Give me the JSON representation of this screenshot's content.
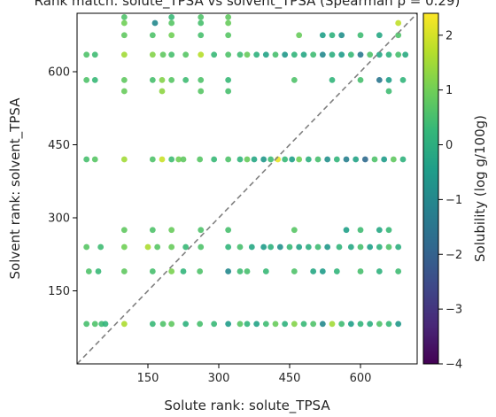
{
  "chart_data": {
    "type": "scatter",
    "title": "Rank match: solute_TPSA vs solvent_TPSA (Spearman ρ = 0.29)",
    "xlabel": "Solute rank: solute_TPSA",
    "ylabel": "Solvent rank: solvent_TPSA",
    "xlim": [
      0,
      720
    ],
    "ylim": [
      0,
      720
    ],
    "xticks": [
      150,
      300,
      450,
      600
    ],
    "yticks": [
      150,
      300,
      450,
      600
    ],
    "grid": false,
    "legend": "none",
    "reference_line": {
      "from": [
        0,
        0
      ],
      "to": [
        720,
        720
      ],
      "style": "dashed",
      "color": "#808080"
    },
    "colorbar": {
      "label": "Solubility (log g/100g)",
      "range": [
        -4,
        2.4
      ],
      "ticks": [
        2,
        1,
        0,
        -1,
        -2,
        -3,
        -4
      ],
      "colormap": "viridis"
    },
    "colormap_colors": [
      "#440154",
      "#482878",
      "#3e4989",
      "#31688e",
      "#26828e",
      "#1f9e89",
      "#35b779",
      "#6ece58",
      "#b5de2b",
      "#fde725"
    ],
    "points": [
      {
        "x": 20,
        "y": 82,
        "c": 0.5
      },
      {
        "x": 38,
        "y": 82,
        "c": 0.6
      },
      {
        "x": 52,
        "y": 82,
        "c": 0.4
      },
      {
        "x": 60,
        "y": 82,
        "c": 0.2
      },
      {
        "x": 100,
        "y": 82,
        "c": 1.6
      },
      {
        "x": 160,
        "y": 82,
        "c": 0.3
      },
      {
        "x": 182,
        "y": 82,
        "c": 0.6
      },
      {
        "x": 200,
        "y": 82,
        "c": 0.8
      },
      {
        "x": 230,
        "y": 82,
        "c": 0.1
      },
      {
        "x": 260,
        "y": 82,
        "c": 0.5
      },
      {
        "x": 290,
        "y": 82,
        "c": 0.3
      },
      {
        "x": 320,
        "y": 82,
        "c": -0.5
      },
      {
        "x": 345,
        "y": 82,
        "c": 0.7
      },
      {
        "x": 360,
        "y": 82,
        "c": 0.2
      },
      {
        "x": 380,
        "y": 82,
        "c": -0.3
      },
      {
        "x": 400,
        "y": 82,
        "c": 0.4
      },
      {
        "x": 420,
        "y": 82,
        "c": 0.9
      },
      {
        "x": 440,
        "y": 82,
        "c": 0.1
      },
      {
        "x": 460,
        "y": 82,
        "c": 1.2
      },
      {
        "x": 480,
        "y": 82,
        "c": 0.3
      },
      {
        "x": 500,
        "y": 82,
        "c": 0.6
      },
      {
        "x": 520,
        "y": 82,
        "c": -1.0
      },
      {
        "x": 540,
        "y": 82,
        "c": 1.5
      },
      {
        "x": 560,
        "y": 82,
        "c": 0.4
      },
      {
        "x": 580,
        "y": 82,
        "c": -0.4
      },
      {
        "x": 600,
        "y": 82,
        "c": 0.2
      },
      {
        "x": 620,
        "y": 82,
        "c": 0.0
      },
      {
        "x": 640,
        "y": 82,
        "c": 0.6
      },
      {
        "x": 660,
        "y": 82,
        "c": 0.3
      },
      {
        "x": 680,
        "y": 82,
        "c": -0.6
      },
      {
        "x": 25,
        "y": 190,
        "c": 0.6
      },
      {
        "x": 45,
        "y": 190,
        "c": 0.3
      },
      {
        "x": 100,
        "y": 190,
        "c": 0.8
      },
      {
        "x": 160,
        "y": 190,
        "c": 0.5
      },
      {
        "x": 200,
        "y": 190,
        "c": 1.1
      },
      {
        "x": 225,
        "y": 190,
        "c": 0.2
      },
      {
        "x": 260,
        "y": 190,
        "c": 0.6
      },
      {
        "x": 320,
        "y": 190,
        "c": -1.0
      },
      {
        "x": 345,
        "y": 190,
        "c": 0.4
      },
      {
        "x": 360,
        "y": 190,
        "c": 0.5
      },
      {
        "x": 400,
        "y": 190,
        "c": 0.3
      },
      {
        "x": 460,
        "y": 190,
        "c": 0.6
      },
      {
        "x": 500,
        "y": 190,
        "c": -0.2
      },
      {
        "x": 520,
        "y": 190,
        "c": -0.5
      },
      {
        "x": 550,
        "y": 190,
        "c": 0.2
      },
      {
        "x": 600,
        "y": 190,
        "c": 0.5
      },
      {
        "x": 640,
        "y": 190,
        "c": 0.1
      },
      {
        "x": 680,
        "y": 190,
        "c": 0.4
      },
      {
        "x": 20,
        "y": 240,
        "c": 0.7
      },
      {
        "x": 50,
        "y": 240,
        "c": 0.4
      },
      {
        "x": 100,
        "y": 240,
        "c": 1.0
      },
      {
        "x": 150,
        "y": 240,
        "c": 1.6
      },
      {
        "x": 170,
        "y": 240,
        "c": 0.7
      },
      {
        "x": 200,
        "y": 240,
        "c": 0.9
      },
      {
        "x": 230,
        "y": 240,
        "c": 0.3
      },
      {
        "x": 262,
        "y": 240,
        "c": 0.6
      },
      {
        "x": 320,
        "y": 240,
        "c": 0.2
      },
      {
        "x": 345,
        "y": 240,
        "c": 0.5
      },
      {
        "x": 370,
        "y": 240,
        "c": -0.2
      },
      {
        "x": 395,
        "y": 240,
        "c": -0.5
      },
      {
        "x": 410,
        "y": 240,
        "c": 0.1
      },
      {
        "x": 430,
        "y": 240,
        "c": -0.8
      },
      {
        "x": 450,
        "y": 240,
        "c": 0.3
      },
      {
        "x": 470,
        "y": 240,
        "c": -0.3
      },
      {
        "x": 490,
        "y": 240,
        "c": 0.0
      },
      {
        "x": 510,
        "y": 240,
        "c": 0.4
      },
      {
        "x": 530,
        "y": 240,
        "c": -0.6
      },
      {
        "x": 555,
        "y": 240,
        "c": 0.2
      },
      {
        "x": 580,
        "y": 240,
        "c": -0.2
      },
      {
        "x": 600,
        "y": 240,
        "c": 0.5
      },
      {
        "x": 620,
        "y": 240,
        "c": -0.4
      },
      {
        "x": 640,
        "y": 240,
        "c": 0.1
      },
      {
        "x": 660,
        "y": 240,
        "c": 0.6
      },
      {
        "x": 680,
        "y": 240,
        "c": 0.0
      },
      {
        "x": 100,
        "y": 275,
        "c": 0.8
      },
      {
        "x": 160,
        "y": 275,
        "c": 0.6
      },
      {
        "x": 200,
        "y": 275,
        "c": 0.9
      },
      {
        "x": 262,
        "y": 275,
        "c": 0.6
      },
      {
        "x": 320,
        "y": 275,
        "c": 0.5
      },
      {
        "x": 460,
        "y": 275,
        "c": 0.7
      },
      {
        "x": 570,
        "y": 275,
        "c": -0.4
      },
      {
        "x": 600,
        "y": 275,
        "c": 0.4
      },
      {
        "x": 640,
        "y": 275,
        "c": -0.2
      },
      {
        "x": 660,
        "y": 275,
        "c": 0.3
      },
      {
        "x": 20,
        "y": 420,
        "c": 0.5
      },
      {
        "x": 38,
        "y": 420,
        "c": 0.7
      },
      {
        "x": 100,
        "y": 420,
        "c": 1.5
      },
      {
        "x": 160,
        "y": 420,
        "c": 0.6
      },
      {
        "x": 180,
        "y": 420,
        "c": 1.9
      },
      {
        "x": 200,
        "y": 420,
        "c": 0.4
      },
      {
        "x": 215,
        "y": 420,
        "c": 1.0
      },
      {
        "x": 225,
        "y": 420,
        "c": 0.8
      },
      {
        "x": 260,
        "y": 420,
        "c": 0.7
      },
      {
        "x": 290,
        "y": 420,
        "c": 0.3
      },
      {
        "x": 320,
        "y": 420,
        "c": 0.6
      },
      {
        "x": 345,
        "y": 420,
        "c": 0.2
      },
      {
        "x": 360,
        "y": 420,
        "c": 0.9
      },
      {
        "x": 375,
        "y": 420,
        "c": -0.2
      },
      {
        "x": 395,
        "y": 420,
        "c": -0.6
      },
      {
        "x": 410,
        "y": 420,
        "c": 0.4
      },
      {
        "x": 425,
        "y": 420,
        "c": 2.2
      },
      {
        "x": 440,
        "y": 420,
        "c": 0.3
      },
      {
        "x": 455,
        "y": 420,
        "c": -0.4
      },
      {
        "x": 470,
        "y": 420,
        "c": 1.0
      },
      {
        "x": 490,
        "y": 420,
        "c": 0.0
      },
      {
        "x": 510,
        "y": 420,
        "c": 0.5
      },
      {
        "x": 530,
        "y": 420,
        "c": -0.8
      },
      {
        "x": 550,
        "y": 420,
        "c": 0.2
      },
      {
        "x": 570,
        "y": 420,
        "c": -1.2
      },
      {
        "x": 590,
        "y": 420,
        "c": -0.3
      },
      {
        "x": 610,
        "y": 420,
        "c": -1.8
      },
      {
        "x": 630,
        "y": 420,
        "c": 0.6
      },
      {
        "x": 650,
        "y": 420,
        "c": -0.5
      },
      {
        "x": 670,
        "y": 420,
        "c": 0.8
      },
      {
        "x": 690,
        "y": 420,
        "c": 0.1
      },
      {
        "x": 20,
        "y": 583,
        "c": 0.6
      },
      {
        "x": 38,
        "y": 583,
        "c": 0.3
      },
      {
        "x": 100,
        "y": 583,
        "c": 0.8
      },
      {
        "x": 160,
        "y": 583,
        "c": 0.5
      },
      {
        "x": 180,
        "y": 583,
        "c": 1.2
      },
      {
        "x": 200,
        "y": 583,
        "c": 0.7
      },
      {
        "x": 230,
        "y": 583,
        "c": 0.4
      },
      {
        "x": 262,
        "y": 583,
        "c": 0.6
      },
      {
        "x": 320,
        "y": 583,
        "c": 0.3
      },
      {
        "x": 460,
        "y": 583,
        "c": 0.6
      },
      {
        "x": 540,
        "y": 583,
        "c": 0.2
      },
      {
        "x": 600,
        "y": 583,
        "c": 0.5
      },
      {
        "x": 640,
        "y": 583,
        "c": -1.5
      },
      {
        "x": 660,
        "y": 583,
        "c": -0.4
      },
      {
        "x": 690,
        "y": 583,
        "c": 0.2
      },
      {
        "x": 100,
        "y": 560,
        "c": 0.9
      },
      {
        "x": 180,
        "y": 560,
        "c": 1.3
      },
      {
        "x": 262,
        "y": 560,
        "c": 0.7
      },
      {
        "x": 320,
        "y": 560,
        "c": 0.5
      },
      {
        "x": 660,
        "y": 560,
        "c": 0.4
      },
      {
        "x": 20,
        "y": 635,
        "c": 0.6
      },
      {
        "x": 38,
        "y": 635,
        "c": 0.4
      },
      {
        "x": 100,
        "y": 635,
        "c": 1.5
      },
      {
        "x": 160,
        "y": 635,
        "c": 1.2
      },
      {
        "x": 182,
        "y": 635,
        "c": 0.8
      },
      {
        "x": 200,
        "y": 635,
        "c": 0.5
      },
      {
        "x": 230,
        "y": 635,
        "c": 0.7
      },
      {
        "x": 262,
        "y": 635,
        "c": 1.7
      },
      {
        "x": 290,
        "y": 635,
        "c": 0.3
      },
      {
        "x": 320,
        "y": 635,
        "c": 0.6
      },
      {
        "x": 345,
        "y": 635,
        "c": 0.4
      },
      {
        "x": 360,
        "y": 635,
        "c": 0.9
      },
      {
        "x": 380,
        "y": 635,
        "c": 0.1
      },
      {
        "x": 400,
        "y": 635,
        "c": -0.3
      },
      {
        "x": 420,
        "y": 635,
        "c": 0.5
      },
      {
        "x": 440,
        "y": 635,
        "c": -0.6
      },
      {
        "x": 460,
        "y": 635,
        "c": 0.2
      },
      {
        "x": 480,
        "y": 635,
        "c": -0.2
      },
      {
        "x": 500,
        "y": 635,
        "c": 0.4
      },
      {
        "x": 520,
        "y": 635,
        "c": -1.0
      },
      {
        "x": 540,
        "y": 635,
        "c": 0.0
      },
      {
        "x": 560,
        "y": 635,
        "c": -0.5
      },
      {
        "x": 580,
        "y": 635,
        "c": 0.3
      },
      {
        "x": 600,
        "y": 635,
        "c": -1.4
      },
      {
        "x": 620,
        "y": 635,
        "c": 0.6
      },
      {
        "x": 640,
        "y": 635,
        "c": -0.2
      },
      {
        "x": 660,
        "y": 635,
        "c": 0.1
      },
      {
        "x": 680,
        "y": 635,
        "c": 0.5
      },
      {
        "x": 695,
        "y": 635,
        "c": -0.1
      },
      {
        "x": 100,
        "y": 675,
        "c": 0.8
      },
      {
        "x": 160,
        "y": 675,
        "c": 0.6
      },
      {
        "x": 200,
        "y": 675,
        "c": 1.0
      },
      {
        "x": 262,
        "y": 675,
        "c": 0.5
      },
      {
        "x": 320,
        "y": 675,
        "c": 0.7
      },
      {
        "x": 470,
        "y": 675,
        "c": 0.9
      },
      {
        "x": 520,
        "y": 675,
        "c": -0.4
      },
      {
        "x": 540,
        "y": 675,
        "c": 0.1
      },
      {
        "x": 560,
        "y": 675,
        "c": -0.8
      },
      {
        "x": 600,
        "y": 675,
        "c": 0.4
      },
      {
        "x": 640,
        "y": 675,
        "c": -0.2
      },
      {
        "x": 680,
        "y": 675,
        "c": 0.6
      },
      {
        "x": 100,
        "y": 700,
        "c": 1.0
      },
      {
        "x": 165,
        "y": 700,
        "c": -1.0
      },
      {
        "x": 200,
        "y": 700,
        "c": 0.7
      },
      {
        "x": 262,
        "y": 700,
        "c": 0.5
      },
      {
        "x": 320,
        "y": 700,
        "c": 0.9
      },
      {
        "x": 680,
        "y": 700,
        "c": 1.8
      },
      {
        "x": 100,
        "y": 712,
        "c": 0.6
      },
      {
        "x": 200,
        "y": 712,
        "c": 0.3
      },
      {
        "x": 262,
        "y": 712,
        "c": 0.6
      },
      {
        "x": 320,
        "y": 712,
        "c": 0.8
      }
    ]
  }
}
